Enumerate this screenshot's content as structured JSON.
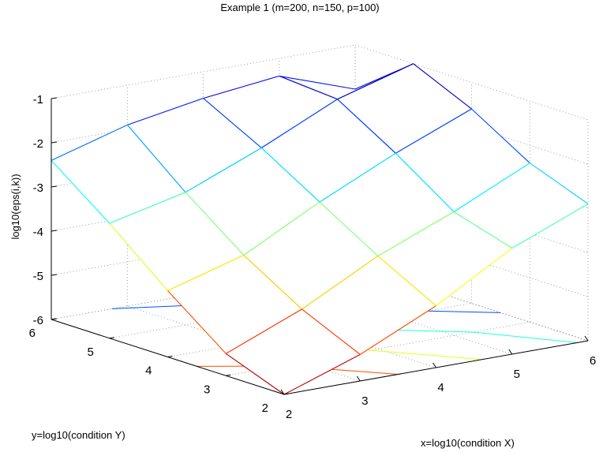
{
  "chart_data": {
    "type": "surface",
    "title": "Example 1 (m=200, n=150, p=100)",
    "xlabel": "x=log10(condition X)",
    "ylabel": "y=log10(condition Y)",
    "zlabel": "log10(eps(i,k))",
    "x_ticks": [
      "2",
      "3",
      "4",
      "5",
      "6"
    ],
    "y_ticks": [
      "2",
      "3",
      "4",
      "5",
      "6"
    ],
    "z_ticks": [
      "-6",
      "-5",
      "-4",
      "-3",
      "-2",
      "-1"
    ],
    "xlim": [
      2,
      6
    ],
    "ylim": [
      2,
      6
    ],
    "zlim": [
      -6,
      -1
    ],
    "grid": true,
    "colormap": "jet",
    "x": [
      2,
      3,
      4,
      5,
      6
    ],
    "y": [
      2,
      3,
      4,
      5,
      6
    ],
    "z": [
      [
        -6.0,
        -5.4,
        -4.6,
        -3.6,
        -2.9
      ],
      [
        -5.5,
        -4.8,
        -3.9,
        -3.2,
        -2.4
      ],
      [
        -4.5,
        -4.0,
        -3.1,
        -2.3,
        -1.6
      ],
      [
        -3.4,
        -3.0,
        -2.3,
        -1.5,
        -1.0
      ],
      [
        -2.4,
        -1.9,
        -1.6,
        -1.4,
        -2.0
      ]
    ],
    "contour_levels": [
      -6,
      -5,
      -4,
      -3,
      -2,
      -1
    ]
  }
}
